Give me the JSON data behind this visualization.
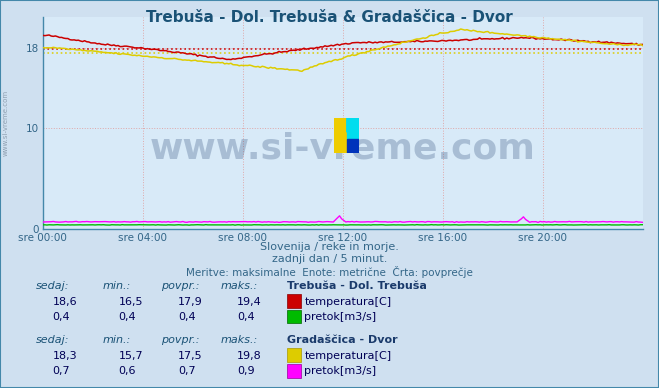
{
  "title": "Trebuša - Dol. Trebuša & Gradaščica - Dvor",
  "title_color": "#1a5276",
  "bg_color": "#cfe0f0",
  "plot_bg_color": "#d8eaf8",
  "grid_color": "#e0a0a0",
  "subtitle1": "Slovenija / reke in morje.",
  "subtitle2": "zadnji dan / 5 minut.",
  "subtitle3": "Meritve: maksimalne  Enote: metrične  Črta: povprečje",
  "xlabel_ticks": [
    "sre 00:00",
    "sre 04:00",
    "sre 08:00",
    "sre 12:00",
    "sre 16:00",
    "sre 20:00"
  ],
  "ylim": [
    0,
    21
  ],
  "xlim_min": 0,
  "xlim_max": 288,
  "watermark": "www.si-vreme.com",
  "watermark_color": "#1a3a6b",
  "watermark_alpha": 0.25,
  "trebusa_temp_color": "#cc0000",
  "trebusa_flow_color": "#00bb00",
  "gradascica_temp_color": "#ddcc00",
  "gradascica_flow_color": "#ff00ff",
  "avg_trebusa_temp": 17.9,
  "avg_gradascica_temp": 17.5,
  "table_label_color": "#1a5276",
  "table_value_color": "#000055",
  "table_header_color": "#1a3a6b",
  "watermark_side": "www.si-vreme.com",
  "border_color": "#4488aa",
  "axis_color": "#4488aa",
  "tick_color": "#336688",
  "subtitle_color": "#336688"
}
